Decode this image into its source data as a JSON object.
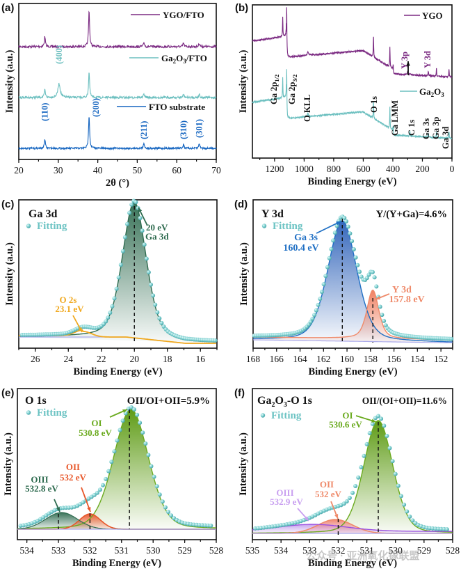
{
  "figure": {
    "watermark": "公众号 · 亚洲氧化镓联盟"
  },
  "chart_data": [
    {
      "panel": "(a)",
      "type": "line",
      "title": "",
      "xlabel": "2θ (°)",
      "ylabel": "Intensity (a.u.)",
      "xlim": [
        20,
        70
      ],
      "xticks": [
        "20",
        "30",
        "40",
        "50",
        "60",
        "70"
      ],
      "grid": false,
      "legend_placement": "right, per-series",
      "series": [
        {
          "name": "YGO/FTO",
          "color": "#7b2a82",
          "peaks": [
            26.6,
            37.8,
            51.7,
            61.7,
            65.7
          ],
          "peak_heights": [
            0.28,
            1.0,
            0.12,
            0.1,
            0.1
          ]
        },
        {
          "name": "Ga2O3/FTO",
          "color": "#6bbfbf",
          "peaks": [
            26.6,
            30.2,
            37.8,
            51.7,
            61.7,
            65.7
          ],
          "peak_heights": [
            0.25,
            0.45,
            0.85,
            0.12,
            0.1,
            0.12
          ]
        },
        {
          "name": "FTO substrate",
          "color": "#1565c0",
          "peaks": [
            26.6,
            37.8,
            51.7,
            61.7,
            65.7
          ],
          "peak_heights": [
            0.28,
            1.0,
            0.15,
            0.12,
            0.15
          ]
        }
      ],
      "annotations": [
        {
          "text": "(400)",
          "x": 30.2,
          "color": "#6bbfbf"
        },
        {
          "text": "(110)",
          "x": 26.6,
          "color": "#1565c0"
        },
        {
          "text": "(200)",
          "x": 39.5,
          "color": "#1565c0"
        },
        {
          "text": "(211)",
          "x": 51.7,
          "color": "#1565c0"
        },
        {
          "text": "(310)",
          "x": 61.7,
          "color": "#1565c0"
        },
        {
          "text": "(301)",
          "x": 65.7,
          "color": "#1565c0"
        }
      ]
    },
    {
      "panel": "(b)",
      "type": "line",
      "xlabel": "Binding Energy (eV)",
      "ylabel": "Intensity (a.u.)",
      "xlim": [
        1350,
        0
      ],
      "xticks": [
        "1200",
        "1000",
        "800",
        "600",
        "400",
        "200",
        "0"
      ],
      "grid": false,
      "series": [
        {
          "name": "YGO",
          "color": "#7b2a82"
        },
        {
          "name": "Ga2O3",
          "color": "#6bbfbf"
        }
      ],
      "annotations": [
        {
          "text": "Ga 2p1/2",
          "x": 1145
        },
        {
          "text": "Ga 2p3/2",
          "x": 1118
        },
        {
          "text": "O KLL",
          "x": 975
        },
        {
          "text": "O 1s",
          "x": 531
        },
        {
          "text": "Ga LMM",
          "x": 420
        },
        {
          "text": "C 1s",
          "x": 285
        },
        {
          "text": "Ga 3s",
          "x": 160
        },
        {
          "text": "Ga 3p",
          "x": 105
        },
        {
          "text": "Ga 3d",
          "x": 20
        },
        {
          "text": "Y 3p",
          "x": 300,
          "color": "#7b2a82"
        },
        {
          "text": "Y 3d",
          "x": 158,
          "color": "#7b2a82"
        }
      ]
    },
    {
      "panel": "(c)",
      "type": "line",
      "title": "Ga 3d",
      "legend": "Fitting",
      "xlabel": "Binding Energy (eV)",
      "ylabel": "Intensity (a.u.)",
      "xlim": [
        27,
        15
      ],
      "xticks": [
        "26",
        "24",
        "22",
        "20",
        "18",
        "16"
      ],
      "peaks": [
        {
          "name": "Ga 3d",
          "center": 20.0,
          "label": "20 eV",
          "color": "#2e6b4f"
        },
        {
          "name": "O 2s",
          "center": 23.1,
          "label": "23.1 eV",
          "color": "#f0a81e"
        }
      ]
    },
    {
      "panel": "(d)",
      "type": "line",
      "title": "Y 3d",
      "legend": "Fitting",
      "ratio_text": "Y/(Y+Ga)=4.6%",
      "xlabel": "Binding Energy (eV)",
      "ylabel": "Intensity (a.u.)",
      "xlim": [
        168,
        151
      ],
      "xticks": [
        "168",
        "166",
        "164",
        "162",
        "160",
        "158",
        "156",
        "154",
        "152"
      ],
      "peaks": [
        {
          "name": "Ga 3s",
          "center": 160.4,
          "label": "160.4 eV",
          "color": "#1f6fc4"
        },
        {
          "name": "Y 3d",
          "center": 157.8,
          "label": "157.8 eV",
          "color": "#ef8a6a"
        }
      ]
    },
    {
      "panel": "(e)",
      "type": "line",
      "title": "O 1s",
      "legend": "Fitting",
      "ratio_text": "OII/OI+OII=5.9%",
      "xlabel": "Binding Energy (eV)",
      "ylabel": "Intensity (a.u.)",
      "xlim": [
        534.3,
        528
      ],
      "xticks": [
        "534",
        "533",
        "532",
        "531",
        "530",
        "529",
        "528"
      ],
      "peaks": [
        {
          "name": "OI",
          "center": 530.8,
          "label": "530.8 eV",
          "color": "#6aaa1e"
        },
        {
          "name": "OII",
          "center": 532.0,
          "label": "532 eV",
          "color": "#e8572a"
        },
        {
          "name": "OIII",
          "center": 532.8,
          "label": "532.8 eV",
          "color": "#2e6b4f"
        }
      ]
    },
    {
      "panel": "(f)",
      "type": "line",
      "title": "Ga2O3-O 1s",
      "legend": "Fitting",
      "ratio_text": "OII/(OI+OII)=11.6%",
      "xlabel": "Binding Energy (eV)",
      "ylabel": "Intensity (a.u.)",
      "xlim": [
        535,
        528
      ],
      "xticks": [
        "535",
        "534",
        "533",
        "532",
        "531",
        "530",
        "529",
        "528"
      ],
      "peaks": [
        {
          "name": "OI",
          "center": 530.6,
          "label": "530.6 eV",
          "color": "#6aaa1e"
        },
        {
          "name": "OII",
          "center": 532.0,
          "label": "532 eV",
          "color": "#ef8a6a"
        },
        {
          "name": "OIII",
          "center": 532.9,
          "label": "532.9 eV",
          "color": "#c9a0f0"
        }
      ]
    }
  ]
}
